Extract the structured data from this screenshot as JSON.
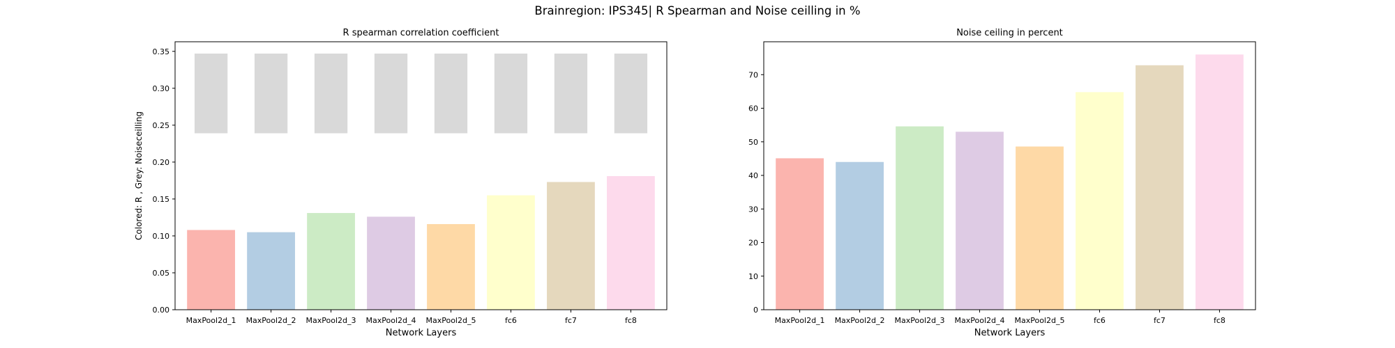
{
  "figure": {
    "suptitle": "Brainregion: IPS345| R Spearman and Noise ceilling in %"
  },
  "chart_data": [
    {
      "type": "bar",
      "title": "R spearman correlation coefficient",
      "xlabel": "Network Layers",
      "ylabel": "Colored: R , Grey: Noiseceilling",
      "categories": [
        "MaxPool2d_1",
        "MaxPool2d_2",
        "MaxPool2d_3",
        "MaxPool2d_4",
        "MaxPool2d_5",
        "fc6",
        "fc7",
        "fc8"
      ],
      "ylim": [
        0,
        0.363
      ],
      "yticks": [
        0.0,
        0.05,
        0.1,
        0.15,
        0.2,
        0.25,
        0.3,
        0.35
      ],
      "ytick_labels": [
        "0.00",
        "0.05",
        "0.10",
        "0.15",
        "0.20",
        "0.25",
        "0.30",
        "0.35"
      ],
      "grid": false,
      "series": [
        {
          "values": [
            0.108,
            0.105,
            0.131,
            0.126,
            0.116,
            0.155,
            0.173,
            0.181
          ]
        }
      ],
      "noise_ceiling_ranges": [
        [
          0.239,
          0.347
        ],
        [
          0.239,
          0.347
        ],
        [
          0.239,
          0.347
        ],
        [
          0.239,
          0.347
        ],
        [
          0.239,
          0.347
        ],
        [
          0.239,
          0.347
        ],
        [
          0.239,
          0.347
        ],
        [
          0.239,
          0.347
        ]
      ],
      "colors": [
        "#fbb4ae",
        "#b3cde3",
        "#ccebc5",
        "#decbe4",
        "#fed9a6",
        "#ffffcc",
        "#e5d8bd",
        "#fddaec"
      ],
      "noise_color": "#d9d9d9"
    },
    {
      "type": "bar",
      "title": "Noise ceiling in percent",
      "xlabel": "Network Layers",
      "ylabel": "",
      "categories": [
        "MaxPool2d_1",
        "MaxPool2d_2",
        "MaxPool2d_3",
        "MaxPool2d_4",
        "MaxPool2d_5",
        "fc6",
        "fc7",
        "fc8"
      ],
      "ylim": [
        0,
        79.8
      ],
      "yticks": [
        0,
        10,
        20,
        30,
        40,
        50,
        60,
        70
      ],
      "ytick_labels": [
        "0",
        "10",
        "20",
        "30",
        "40",
        "50",
        "60",
        "70"
      ],
      "grid": false,
      "series": [
        {
          "values": [
            45.1,
            44.0,
            54.6,
            53.0,
            48.6,
            64.8,
            72.8,
            76.0
          ]
        }
      ],
      "colors": [
        "#fbb4ae",
        "#b3cde3",
        "#ccebc5",
        "#decbe4",
        "#fed9a6",
        "#ffffcc",
        "#e5d8bd",
        "#fddaec"
      ]
    }
  ]
}
